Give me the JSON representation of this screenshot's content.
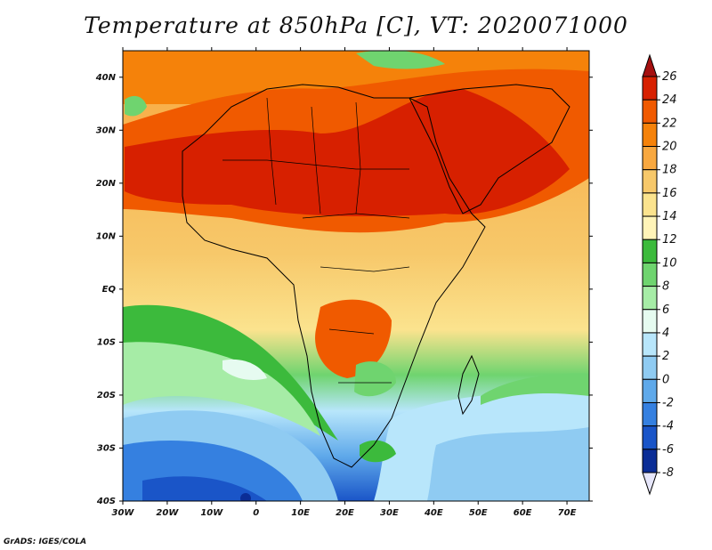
{
  "title": "Temperature at 850hPa [C], VT: 2020071000",
  "credit": "GrADS: IGES/COLA",
  "map": {
    "lat_labels": [
      "40N",
      "30N",
      "20N",
      "10N",
      "EQ",
      "10S",
      "20S",
      "30S",
      "40S"
    ],
    "lon_labels": [
      "30W",
      "20W",
      "10W",
      "0",
      "10E",
      "20E",
      "30E",
      "40E",
      "50E",
      "60E",
      "70E"
    ],
    "lat_range": [
      -40,
      45
    ],
    "lon_range": [
      -30,
      75
    ]
  },
  "colorbar": {
    "levels": [
      "26",
      "24",
      "22",
      "20",
      "18",
      "16",
      "14",
      "12",
      "10",
      "8",
      "6",
      "4",
      "2",
      "0",
      "-2",
      "-4",
      "-6",
      "-8"
    ],
    "colors": [
      "#a50f0f",
      "#d72000",
      "#f05a00",
      "#f5820a",
      "#f8a840",
      "#f7c86a",
      "#fbe38e",
      "#fff4b8",
      "#3cba3c",
      "#6fd46f",
      "#a6eca6",
      "#e6fbf0",
      "#b8e6fb",
      "#8fcbf2",
      "#5fa9ea",
      "#3580e0",
      "#1a55c8",
      "#0b2d96",
      "#07186e"
    ]
  }
}
